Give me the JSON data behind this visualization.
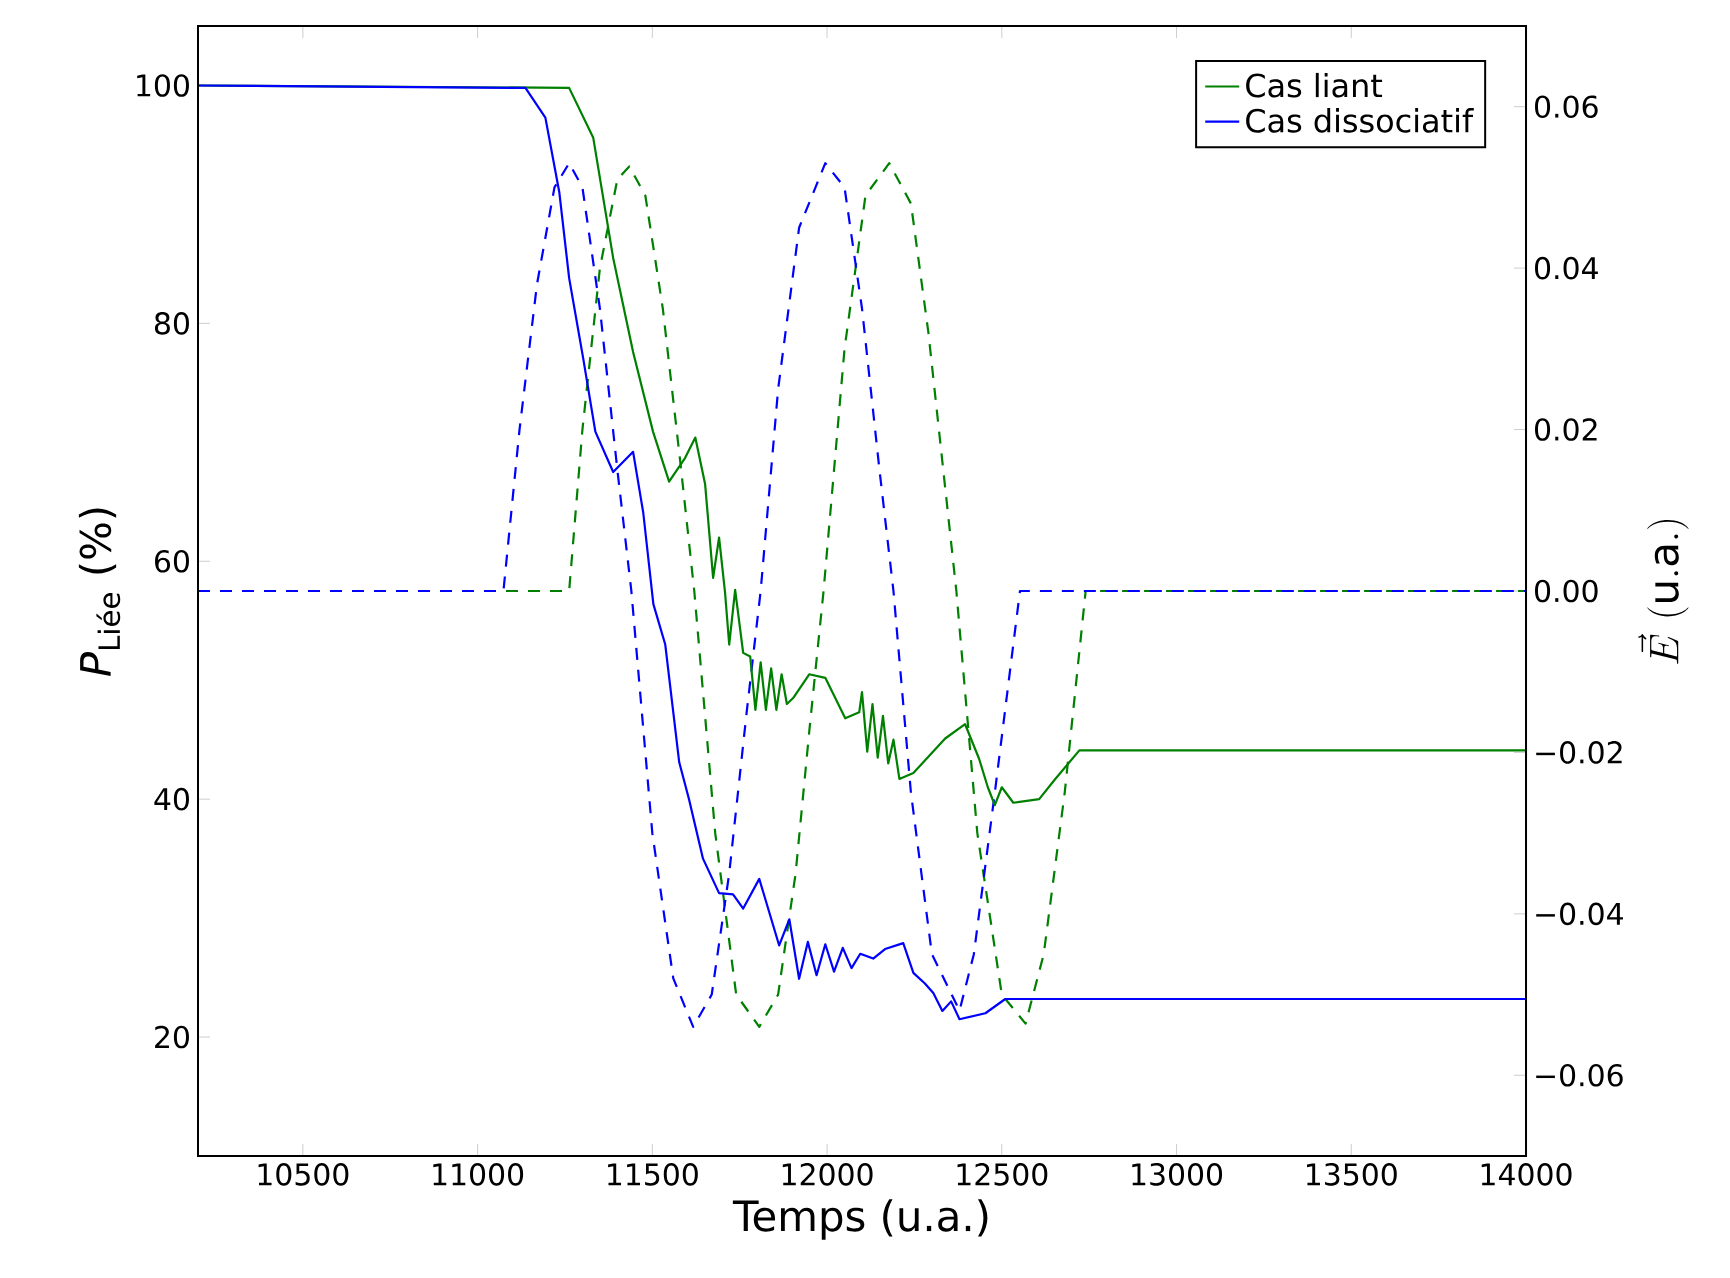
{
  "chart_data": {
    "type": "line",
    "xlabel": "Temps (u.a.)",
    "ylabel": "*P*$_{Liée}$ (%)",
    "y2label": "\\vec{E}\\ \\mathrm{(u.a.)}",
    "xlim": [
      10200,
      14000
    ],
    "xticks": [
      10500,
      11000,
      11500,
      12000,
      12500,
      13000,
      13500,
      14000
    ],
    "ylim": [
      10,
      105
    ],
    "yticks": [
      20,
      40,
      60,
      80,
      100
    ],
    "y2lim": [
      -0.07,
      0.07
    ],
    "y2ticks": [
      {
        "value": -0.06,
        "label": "−0.06"
      },
      {
        "value": -0.04,
        "label": "−0.04"
      },
      {
        "value": -0.02,
        "label": "−0.02"
      },
      {
        "value": 0,
        "label": "0.00"
      },
      0.02,
      0.04,
      0.06
    ],
    "legend": "top right",
    "series": [
      {
        "axis": "y2",
        "line_style": "dashed",
        "color": "#008000",
        "x": [
          10200,
          11262,
          11300,
          11350,
          11400,
          11434,
          11480,
          11530,
          11580,
          11620,
          11680,
          11740,
          11806,
          11860,
          11910,
          11950,
          11990,
          12050,
          12110,
          12178,
          12240,
          12290,
          12330,
          12370,
          12430,
          12500,
          12568,
          12620,
          12680,
          12740,
          14000
        ],
        "values": [
          0,
          0,
          0.02,
          0.04,
          0.051,
          0.0526,
          0.049,
          0.035,
          0.016,
          0,
          -0.03,
          -0.05,
          -0.054,
          -0.05,
          -0.035,
          -0.017,
          0,
          0.03,
          0.049,
          0.053,
          0.048,
          0.032,
          0.016,
          0,
          -0.03,
          -0.05,
          -0.0536,
          -0.045,
          -0.025,
          0,
          0
        ]
      },
      {
        "axis": "y2",
        "line_style": "dashed",
        "color": "#0000ff",
        "x": [
          10200,
          11074,
          11120,
          11170,
          11220,
          11262,
          11300,
          11350,
          11400,
          11440,
          11500,
          11560,
          11617,
          11670,
          11720,
          11770,
          11810,
          11860,
          11920,
          11995,
          12050,
          12100,
          12150,
          12190,
          12240,
          12300,
          12379,
          12420,
          12480,
          12552,
          14000
        ],
        "values": [
          0,
          0,
          0.02,
          0.038,
          0.05,
          0.053,
          0.05,
          0.035,
          0.015,
          0,
          -0.03,
          -0.048,
          -0.054,
          -0.05,
          -0.035,
          -0.015,
          0,
          0.025,
          0.045,
          0.053,
          0.05,
          0.035,
          0.015,
          0,
          -0.025,
          -0.045,
          -0.052,
          -0.045,
          -0.025,
          0,
          0
        ]
      },
      {
        "name": "Cas liant",
        "color": "#008000",
        "x": [
          10200,
          11262,
          11331,
          11388,
          11445,
          11502,
          11548,
          11594,
          11623,
          11651,
          11674,
          11691,
          11708,
          11720,
          11737,
          11760,
          11780,
          11795,
          11810,
          11825,
          11840,
          11855,
          11870,
          11885,
          11903,
          11949,
          11995,
          12052,
          12092,
          12100,
          12115,
          12130,
          12145,
          12160,
          12175,
          12190,
          12207,
          12247,
          12338,
          12395,
          12435,
          12460,
          12480,
          12500,
          12533,
          12607,
          12653,
          12722,
          14000
        ],
        "values": [
          100,
          99.8,
          95.6,
          85.5,
          77.6,
          70.9,
          66.7,
          68.7,
          70.4,
          66.5,
          58.6,
          62.0,
          57.4,
          53.0,
          57.6,
          52.3,
          52,
          47.5,
          51.5,
          47.5,
          51,
          47.5,
          50.5,
          48,
          48.5,
          50.5,
          50.2,
          46.8,
          47.3,
          49,
          44,
          48,
          43.5,
          47,
          43,
          45,
          41.7,
          42.2,
          45.1,
          46.3,
          43.4,
          41,
          39.5,
          41,
          39.7,
          40.0,
          41.7,
          44.1,
          44.1
        ]
      },
      {
        "name": "Cas dissociatif",
        "color": "#0000ff",
        "x": [
          10200,
          11110,
          11137,
          11194,
          11234,
          11262,
          11302,
          11337,
          11388,
          11445,
          11474,
          11503,
          11537,
          11577,
          11605,
          11645,
          11691,
          11731,
          11760,
          11806,
          11863,
          11892,
          11920,
          11945,
          11970,
          11995,
          12020,
          12045,
          12070,
          12095,
          12132,
          12166,
          12218,
          12247,
          12280,
          12304,
          12330,
          12355,
          12379,
          12453,
          12510,
          14000
        ],
        "values": [
          100,
          99.8,
          99.8,
          97.3,
          91,
          83.8,
          77.1,
          70.9,
          67.5,
          69.2,
          64.1,
          56.4,
          53.0,
          43.1,
          40.0,
          35.0,
          32.1,
          32,
          30.8,
          33.3,
          27.7,
          29.9,
          24.9,
          28,
          25.2,
          27.8,
          25.5,
          27.5,
          25.8,
          27,
          26.6,
          27.4,
          27.9,
          25.4,
          24.5,
          23.7,
          22.2,
          23,
          21.5,
          22,
          23.2,
          23.2
        ]
      }
    ]
  }
}
